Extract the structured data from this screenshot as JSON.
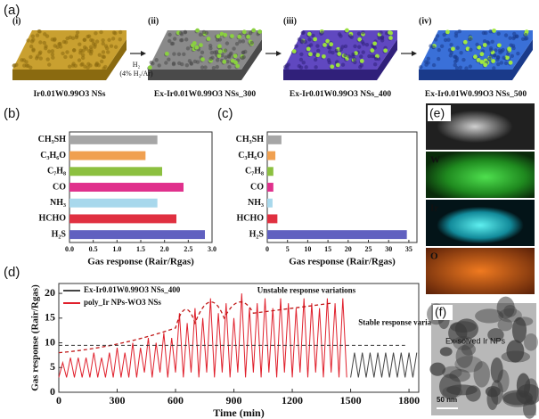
{
  "figure": {
    "panel_a": {
      "label": "(a)",
      "steps": [
        "(i)",
        "(ii)",
        "(iii)",
        "(iv)"
      ],
      "captions": [
        "Ir0.01W0.99O3 NSs",
        "Ex-Ir0.01W0.99O3 NSs_300",
        "Ex-Ir0.01W0.99O3 NSs_400",
        "Ex-Ir0.01W0.99O3 NSs_500"
      ],
      "arrow_label": [
        "H₂",
        "(4% H₂/Ar)"
      ]
    },
    "panel_e": {
      "label": "(e)",
      "maps": [
        "W",
        "Ir",
        "O"
      ]
    },
    "panel_f": {
      "label": "(f)",
      "annotation": "Ex-solved Ir NPs",
      "scale_bar": "50 nm"
    }
  },
  "chart_data": [
    {
      "type": "bar",
      "orientation": "horizontal",
      "panel_label": "(b)",
      "categories": [
        "CH₃SH",
        "C₃H₆O",
        "C₇H₈",
        "CO",
        "NH₃",
        "HCHO",
        "H₂S"
      ],
      "values": [
        1.85,
        1.6,
        1.95,
        2.4,
        1.85,
        2.25,
        2.85
      ],
      "colors": [
        "#a6a6a6",
        "#f0a050",
        "#8cc040",
        "#e0308c",
        "#a8d8ec",
        "#e03040",
        "#6060c0"
      ],
      "xlim": [
        0,
        3.0
      ],
      "xticks": [
        {
          "value": 0,
          "label": "0.0"
        },
        0.5,
        {
          "value": 1,
          "label": "1.0"
        },
        1.5,
        {
          "value": 2,
          "label": "2.0"
        },
        2.5,
        {
          "value": 3,
          "label": "3.0"
        }
      ],
      "xlabel": "Gas response (Rair/Rgas)"
    },
    {
      "type": "bar",
      "orientation": "horizontal",
      "panel_label": "(c)",
      "categories": [
        "CH₃SH",
        "C₃H₆O",
        "C₇H₈",
        "CO",
        "NH₃",
        "HCHO",
        "H₂S"
      ],
      "values": [
        3.5,
        2,
        1.5,
        1.5,
        1.3,
        2.5,
        34.5
      ],
      "colors": [
        "#a6a6a6",
        "#f0a050",
        "#8cc040",
        "#e0308c",
        "#a8d8ec",
        "#e03040",
        "#6060c0"
      ],
      "xlim": [
        0,
        37
      ],
      "xticks": [
        0,
        5,
        10,
        15,
        20,
        25,
        30,
        35
      ],
      "xlabel": "Gas response (Rair/Rgas)"
    },
    {
      "type": "line",
      "panel_label": "(d)",
      "xlabel": "Time (min)",
      "ylabel": "Gas response (Rair/Rgas)",
      "xlim": [
        0,
        1850
      ],
      "xticks": [
        0,
        300,
        600,
        900,
        1200,
        1500,
        1800
      ],
      "ylim": [
        0,
        22
      ],
      "yticks": [
        0,
        5,
        10,
        15,
        20
      ],
      "annotations": [
        "Unstable response variations",
        "Stable response variations"
      ],
      "series": [
        {
          "name": "Ex-Ir0.01W0.99O3 NSs_400",
          "color": "#444444",
          "x": [
            1500,
            1520,
            1540,
            1560,
            1580,
            1600,
            1620,
            1640,
            1660,
            1680,
            1700,
            1720,
            1740,
            1760,
            1780,
            1800,
            1820,
            1840
          ],
          "values": [
            3,
            8,
            3,
            8,
            3,
            8,
            3,
            8,
            3,
            8,
            3,
            8,
            3,
            8,
            3,
            8,
            3,
            8
          ]
        },
        {
          "name": "poly_Ir NPs-WO3 NSs",
          "color": "#e0202c",
          "x": [
            0,
            20,
            40,
            60,
            80,
            100,
            120,
            140,
            160,
            180,
            200,
            220,
            240,
            260,
            280,
            300,
            320,
            340,
            360,
            380,
            400,
            420,
            440,
            460,
            480,
            500,
            520,
            540,
            560,
            580,
            600,
            620,
            640,
            660,
            680,
            700,
            720,
            740,
            760,
            780,
            800,
            820,
            840,
            860,
            880,
            900,
            920,
            940,
            960,
            980,
            1000,
            1020,
            1040,
            1060,
            1080,
            1100,
            1120,
            1140,
            1160,
            1180,
            1200,
            1220,
            1240,
            1260,
            1280,
            1300,
            1320,
            1340,
            1360,
            1380,
            1400,
            1420,
            1440,
            1460,
            1480
          ],
          "values": [
            3,
            6,
            3,
            7,
            3,
            7,
            3,
            7,
            3,
            8,
            3,
            7,
            3,
            8,
            3,
            9,
            3,
            8,
            3,
            10,
            3,
            9,
            4,
            11,
            3,
            10,
            4,
            12,
            3,
            11,
            4,
            16,
            3,
            14,
            4,
            17,
            3,
            15,
            4,
            19,
            3,
            16,
            4,
            18,
            3,
            15,
            4,
            20,
            3,
            17,
            4,
            18,
            3,
            19,
            4,
            17,
            3,
            19,
            4,
            18,
            3,
            17,
            4,
            19,
            3,
            18,
            4,
            17,
            3,
            19,
            4,
            18,
            3,
            19,
            3
          ]
        }
      ]
    }
  ]
}
